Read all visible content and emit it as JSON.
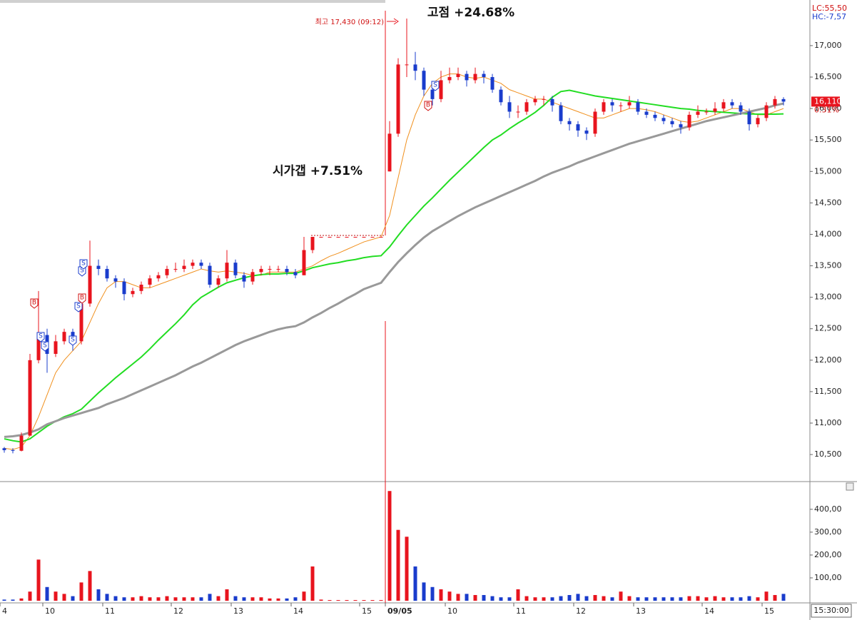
{
  "chart_data": [
    {
      "type": "candlestick",
      "categories": [
        "4",
        null,
        null,
        null,
        null,
        "10",
        null,
        null,
        null,
        null,
        null,
        null,
        "11",
        null,
        null,
        null,
        null,
        null,
        null,
        null,
        "12",
        null,
        null,
        null,
        null,
        null,
        null,
        "13",
        null,
        null,
        null,
        null,
        null,
        null,
        "14",
        null,
        null,
        null,
        null,
        null,
        null,
        null,
        "15",
        null,
        null,
        "09/05",
        null,
        null,
        null,
        null,
        null,
        null,
        "10",
        null,
        null,
        null,
        null,
        null,
        null,
        null,
        "11",
        null,
        null,
        null,
        null,
        null,
        null,
        "12",
        null,
        null,
        null,
        null,
        null,
        null,
        "13",
        null,
        null,
        null,
        null,
        null,
        null,
        null,
        "14",
        null,
        null,
        null,
        null,
        null,
        null,
        "15",
        null,
        null
      ],
      "open": [
        10600,
        10570,
        10560,
        10800,
        12000,
        12400,
        12100,
        12300,
        12450,
        12300,
        12900,
        13500,
        13450,
        13300,
        13250,
        13050,
        13100,
        13200,
        13300,
        13350,
        13450,
        13450,
        13500,
        13550,
        13500,
        13200,
        13300,
        13550,
        13350,
        13250,
        13400,
        13450,
        13450,
        13450,
        13400,
        13350,
        13750,
        13960,
        13960,
        13960,
        13960,
        13960,
        13960,
        13960,
        13960,
        15000,
        15600,
        16700,
        16700,
        16600,
        16300,
        16150,
        16450,
        16500,
        16550,
        16450,
        16550,
        16500,
        16300,
        16100,
        15950,
        15950,
        16100,
        16150,
        16150,
        16050,
        15800,
        15750,
        15650,
        15600,
        15950,
        16100,
        16050,
        16050,
        16100,
        15950,
        15900,
        15850,
        15800,
        15750,
        15700,
        15900,
        15950,
        15950,
        16000,
        16100,
        16050,
        15950,
        15750,
        15850,
        16050,
        16150
      ],
      "high": [
        10620,
        10600,
        10850,
        12100,
        13100,
        12500,
        12400,
        12500,
        12500,
        13000,
        13900,
        13600,
        13500,
        13350,
        13300,
        13150,
        13250,
        13350,
        13400,
        13500,
        13550,
        13600,
        13600,
        13600,
        13550,
        13350,
        13750,
        13600,
        13400,
        13450,
        13500,
        13500,
        13500,
        13500,
        13450,
        13960,
        13960,
        13960,
        13960,
        13960,
        13960,
        13960,
        13960,
        13960,
        13960,
        15800,
        16800,
        17430,
        16900,
        16650,
        16350,
        16600,
        16650,
        16650,
        16600,
        16650,
        16600,
        16550,
        16350,
        16200,
        16050,
        16150,
        16200,
        16200,
        16200,
        16100,
        15850,
        15800,
        15700,
        16000,
        16150,
        16150,
        16100,
        16200,
        16150,
        16000,
        15950,
        15900,
        15850,
        15800,
        15950,
        16050,
        16000,
        16100,
        16150,
        16150,
        16100,
        16000,
        15900,
        16100,
        16200,
        16180
      ],
      "low": [
        10530,
        10520,
        10550,
        10800,
        11950,
        11800,
        12050,
        12250,
        12150,
        12250,
        12850,
        13350,
        13250,
        13150,
        12950,
        13000,
        13050,
        13150,
        13250,
        13300,
        13400,
        13400,
        13450,
        13450,
        13150,
        13150,
        13250,
        13300,
        13150,
        13200,
        13350,
        13350,
        13400,
        13350,
        13300,
        13350,
        13700,
        13960,
        13960,
        13960,
        13960,
        13960,
        13960,
        13960,
        13960,
        15000,
        15550,
        16500,
        16450,
        16200,
        16050,
        16100,
        16400,
        16450,
        16350,
        16400,
        16400,
        16250,
        16050,
        15850,
        15850,
        15900,
        16050,
        16050,
        15950,
        15750,
        15650,
        15550,
        15500,
        15550,
        15900,
        15950,
        15950,
        16000,
        15900,
        15850,
        15800,
        15750,
        15700,
        15600,
        15650,
        15850,
        15900,
        15900,
        15950,
        16000,
        15900,
        15650,
        15700,
        15800,
        16000,
        16050
      ],
      "close": [
        10570,
        10560,
        10800,
        12000,
        12400,
        12100,
        12300,
        12450,
        12300,
        12900,
        13500,
        13450,
        13300,
        13250,
        13050,
        13100,
        13200,
        13300,
        13350,
        13450,
        13450,
        13500,
        13550,
        13500,
        13200,
        13300,
        13550,
        13350,
        13250,
        13400,
        13450,
        13450,
        13450,
        13400,
        13350,
        13750,
        13960,
        13960,
        13960,
        13960,
        13960,
        13960,
        13960,
        13960,
        13960,
        15600,
        16700,
        16700,
        16600,
        16300,
        16150,
        16450,
        16500,
        16550,
        16450,
        16550,
        16500,
        16300,
        16100,
        15950,
        15950,
        16100,
        16150,
        16150,
        16050,
        15800,
        15750,
        15650,
        15600,
        15950,
        16100,
        16050,
        16050,
        16100,
        15950,
        15900,
        15850,
        15800,
        15750,
        15700,
        15900,
        15950,
        15950,
        16000,
        16100,
        16050,
        15950,
        15750,
        15850,
        16050,
        16150,
        16110
      ],
      "up_color": "#e8141e",
      "down_color": "#1a3ccc",
      "series": [
        {
          "color": "#f0901e",
          "width": 1,
          "values": [
            10600,
            10580,
            10620,
            10800,
            11100,
            11450,
            11800,
            12000,
            12150,
            12300,
            12600,
            12900,
            13150,
            13250,
            13250,
            13200,
            13150,
            13150,
            13200,
            13250,
            13300,
            13350,
            13400,
            13450,
            13420,
            13400,
            13420,
            13400,
            13380,
            13350,
            13350,
            13400,
            13400,
            13400,
            13400,
            13450,
            13500,
            13580,
            13650,
            13700,
            13760,
            13820,
            13880,
            13920,
            13960,
            14300,
            14900,
            15500,
            15900,
            16200,
            16400,
            16500,
            16550,
            16550,
            16500,
            16480,
            16500,
            16450,
            16400,
            16300,
            16250,
            16200,
            16150,
            16150,
            16100,
            16050,
            16000,
            15950,
            15900,
            15850,
            15850,
            15900,
            15950,
            16000,
            16000,
            15980,
            15950,
            15900,
            15850,
            15800,
            15780,
            15800,
            15850,
            15900,
            15950,
            16000,
            16000,
            15950,
            15900,
            15900,
            15950,
            16000
          ]
        },
        {
          "color": "#22dd22",
          "width": 2,
          "values": [
            10750,
            10720,
            10700,
            10750,
            10850,
            10950,
            11030,
            11100,
            11150,
            11220,
            11350,
            11480,
            11600,
            11720,
            11830,
            11940,
            12050,
            12180,
            12320,
            12450,
            12580,
            12720,
            12880,
            13000,
            13080,
            13160,
            13230,
            13270,
            13310,
            13340,
            13360,
            13370,
            13370,
            13380,
            13380,
            13420,
            13470,
            13500,
            13530,
            13550,
            13580,
            13600,
            13630,
            13650,
            13660,
            13800,
            13980,
            14150,
            14300,
            14450,
            14580,
            14720,
            14860,
            14990,
            15120,
            15250,
            15380,
            15500,
            15580,
            15680,
            15770,
            15850,
            15940,
            16050,
            16180,
            16270,
            16290,
            16260,
            16230,
            16200,
            16180,
            16160,
            16140,
            16120,
            16100,
            16080,
            16060,
            16040,
            16020,
            16000,
            15990,
            15970,
            15960,
            15950,
            15940,
            15930,
            15920,
            15915,
            15910,
            15910,
            15910,
            15915
          ]
        },
        {
          "color": "#999999",
          "width": 3,
          "values": [
            10780,
            10790,
            10810,
            10850,
            10900,
            10980,
            11030,
            11080,
            11120,
            11160,
            11200,
            11240,
            11300,
            11350,
            11400,
            11460,
            11520,
            11580,
            11640,
            11700,
            11760,
            11830,
            11900,
            11960,
            12030,
            12100,
            12170,
            12240,
            12300,
            12350,
            12400,
            12450,
            12490,
            12520,
            12540,
            12600,
            12680,
            12750,
            12830,
            12900,
            12980,
            13050,
            13130,
            13180,
            13230,
            13400,
            13560,
            13700,
            13830,
            13950,
            14050,
            14130,
            14210,
            14290,
            14360,
            14430,
            14490,
            14550,
            14610,
            14670,
            14730,
            14790,
            14850,
            14920,
            14980,
            15030,
            15080,
            15140,
            15190,
            15240,
            15290,
            15340,
            15390,
            15440,
            15480,
            15520,
            15560,
            15600,
            15640,
            15680,
            15720,
            15760,
            15800,
            15830,
            15860,
            15890,
            15920,
            15950,
            15980,
            16010,
            16050,
            16080
          ]
        }
      ],
      "ylim": [
        10070,
        17725
      ],
      "yticks": [
        {
          "value": 10500,
          "label": "10,500"
        },
        {
          "value": 11000,
          "label": "11,000"
        },
        {
          "value": 11500,
          "label": "11,500"
        },
        {
          "value": 12000,
          "label": "12,000"
        },
        {
          "value": 12500,
          "label": "12,500"
        },
        {
          "value": 13000,
          "label": "13,000"
        },
        {
          "value": 13500,
          "label": "13,500"
        },
        {
          "value": 14000,
          "label": "14,000"
        },
        {
          "value": 14500,
          "label": "14,500"
        },
        {
          "value": 15000,
          "label": "15,000"
        },
        {
          "value": 15500,
          "label": "15,500"
        },
        {
          "value": 16000,
          "label": "16,000"
        },
        {
          "value": 16500,
          "label": "16,500"
        },
        {
          "value": 17000,
          "label": "17,000"
        }
      ],
      "last_price": {
        "value": 16110,
        "label": "16,110"
      },
      "change": {
        "value": 0.31,
        "label": "0.31%"
      },
      "indicators": [
        "LC:55,50",
        "HC:-7,57"
      ],
      "annotations": [
        "고점  +24.68%",
        "시가갭  +7.51%",
        "최고 17,430 (09:12)"
      ],
      "signals": [
        "B",
        "S",
        "S",
        "S",
        "S",
        "B",
        "S",
        "S",
        "B",
        "S"
      ],
      "time_label": "15:30:00"
    },
    {
      "type": "bar",
      "values": [
        5,
        5,
        10,
        40,
        180,
        60,
        40,
        30,
        20,
        80,
        130,
        50,
        30,
        20,
        15,
        15,
        20,
        15,
        15,
        20,
        15,
        15,
        15,
        15,
        30,
        20,
        50,
        20,
        15,
        15,
        15,
        10,
        10,
        10,
        15,
        40,
        150,
        5,
        3,
        3,
        3,
        3,
        3,
        3,
        3,
        480,
        310,
        280,
        150,
        80,
        60,
        50,
        40,
        30,
        30,
        25,
        25,
        20,
        15,
        15,
        50,
        20,
        15,
        15,
        15,
        20,
        25,
        30,
        20,
        25,
        20,
        15,
        40,
        20,
        15,
        15,
        15,
        15,
        15,
        15,
        20,
        20,
        15,
        20,
        15,
        15,
        15,
        20,
        15,
        40,
        25,
        30
      ],
      "ylim": [
        0,
        515
      ],
      "yticks": [
        {
          "value": 100,
          "label": "100,00"
        },
        {
          "value": 200,
          "label": "200,00"
        },
        {
          "value": 300,
          "label": "300,00"
        },
        {
          "value": 400,
          "label": "400,00"
        }
      ]
    }
  ]
}
